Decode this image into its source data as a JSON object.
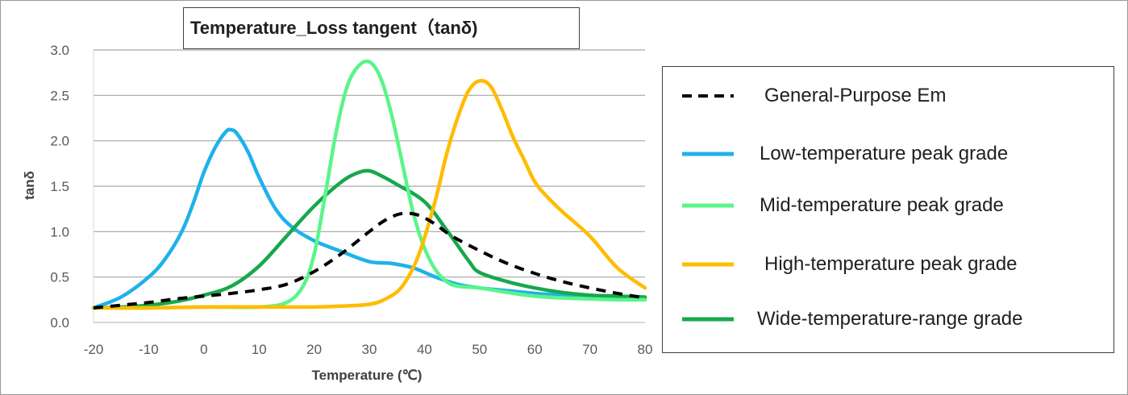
{
  "chart_data": {
    "type": "line",
    "title": "Temperature_Loss tangent（tanδ)",
    "xlabel": "Temperature (℃)",
    "ylabel": "tanδ",
    "xlim": [
      -20,
      80
    ],
    "ylim": [
      0,
      3.0
    ],
    "x_ticks": [
      "-20",
      "-10",
      "0",
      "10",
      "20",
      "30",
      "40",
      "50",
      "60",
      "70",
      "80"
    ],
    "y_ticks": [
      "0.0",
      "0.5",
      "1.0",
      "1.5",
      "2.0",
      "2.5",
      "3.0"
    ],
    "grid": "horizontal",
    "legend_position": "right",
    "series": [
      {
        "name": "General-Purpose Em",
        "color": "#000000",
        "dash": "dashed",
        "x": [
          -20,
          -15,
          -10,
          -5,
          0,
          5,
          10,
          15,
          20,
          25,
          30,
          33,
          36,
          39,
          42,
          45,
          50,
          55,
          60,
          65,
          70,
          75,
          80
        ],
        "y": [
          0.16,
          0.19,
          0.22,
          0.26,
          0.29,
          0.32,
          0.36,
          0.42,
          0.56,
          0.76,
          1.0,
          1.13,
          1.2,
          1.18,
          1.08,
          0.95,
          0.79,
          0.65,
          0.54,
          0.45,
          0.38,
          0.32,
          0.27
        ]
      },
      {
        "name": "Low-temperature peak grade",
        "color": "#1fb1ea",
        "dash": "solid",
        "x": [
          -20,
          -15,
          -10,
          -7,
          -4,
          -2,
          0,
          2,
          4,
          5,
          6,
          8,
          10,
          13,
          16,
          20,
          25,
          30,
          34,
          38,
          42,
          46,
          50,
          55,
          60,
          65,
          70,
          75,
          80
        ],
        "y": [
          0.16,
          0.28,
          0.5,
          0.7,
          1.0,
          1.3,
          1.65,
          1.92,
          2.1,
          2.12,
          2.08,
          1.88,
          1.6,
          1.25,
          1.05,
          0.9,
          0.78,
          0.67,
          0.65,
          0.6,
          0.5,
          0.42,
          0.38,
          0.35,
          0.32,
          0.3,
          0.28,
          0.27,
          0.27
        ]
      },
      {
        "name": "Mid-temperature peak grade",
        "color": "#5af58a",
        "dash": "solid",
        "x": [
          -20,
          -10,
          0,
          10,
          15,
          18,
          20,
          22,
          24,
          26,
          28,
          30,
          32,
          34,
          36,
          38,
          40,
          42,
          44,
          46,
          50,
          55,
          60,
          65,
          70,
          75,
          80
        ],
        "y": [
          0.16,
          0.16,
          0.17,
          0.17,
          0.22,
          0.4,
          0.75,
          1.4,
          2.1,
          2.6,
          2.82,
          2.87,
          2.7,
          2.3,
          1.75,
          1.2,
          0.82,
          0.58,
          0.45,
          0.4,
          0.38,
          0.33,
          0.29,
          0.27,
          0.26,
          0.25,
          0.25
        ]
      },
      {
        "name": "High-temperature peak grade",
        "color": "#ffbc00",
        "dash": "solid",
        "x": [
          -20,
          -10,
          0,
          10,
          20,
          25,
          30,
          33,
          36,
          39,
          42,
          44,
          46,
          48,
          50,
          52,
          54,
          56,
          58,
          60,
          62,
          65,
          70,
          75,
          80
        ],
        "y": [
          0.16,
          0.16,
          0.17,
          0.17,
          0.17,
          0.18,
          0.2,
          0.26,
          0.4,
          0.75,
          1.35,
          1.85,
          2.25,
          2.55,
          2.66,
          2.6,
          2.35,
          2.05,
          1.8,
          1.55,
          1.4,
          1.22,
          0.95,
          0.6,
          0.38
        ]
      },
      {
        "name": "Wide-temperature-range grade",
        "color": "#17a84c",
        "dash": "solid",
        "x": [
          -20,
          -15,
          -10,
          -5,
          0,
          5,
          10,
          15,
          20,
          25,
          28,
          30,
          32,
          35,
          40,
          44,
          48,
          50,
          55,
          60,
          65,
          70,
          75,
          80
        ],
        "y": [
          0.16,
          0.17,
          0.19,
          0.23,
          0.3,
          0.4,
          0.62,
          0.95,
          1.28,
          1.55,
          1.65,
          1.67,
          1.62,
          1.52,
          1.33,
          1.02,
          0.68,
          0.55,
          0.45,
          0.38,
          0.33,
          0.3,
          0.29,
          0.28
        ]
      }
    ]
  }
}
